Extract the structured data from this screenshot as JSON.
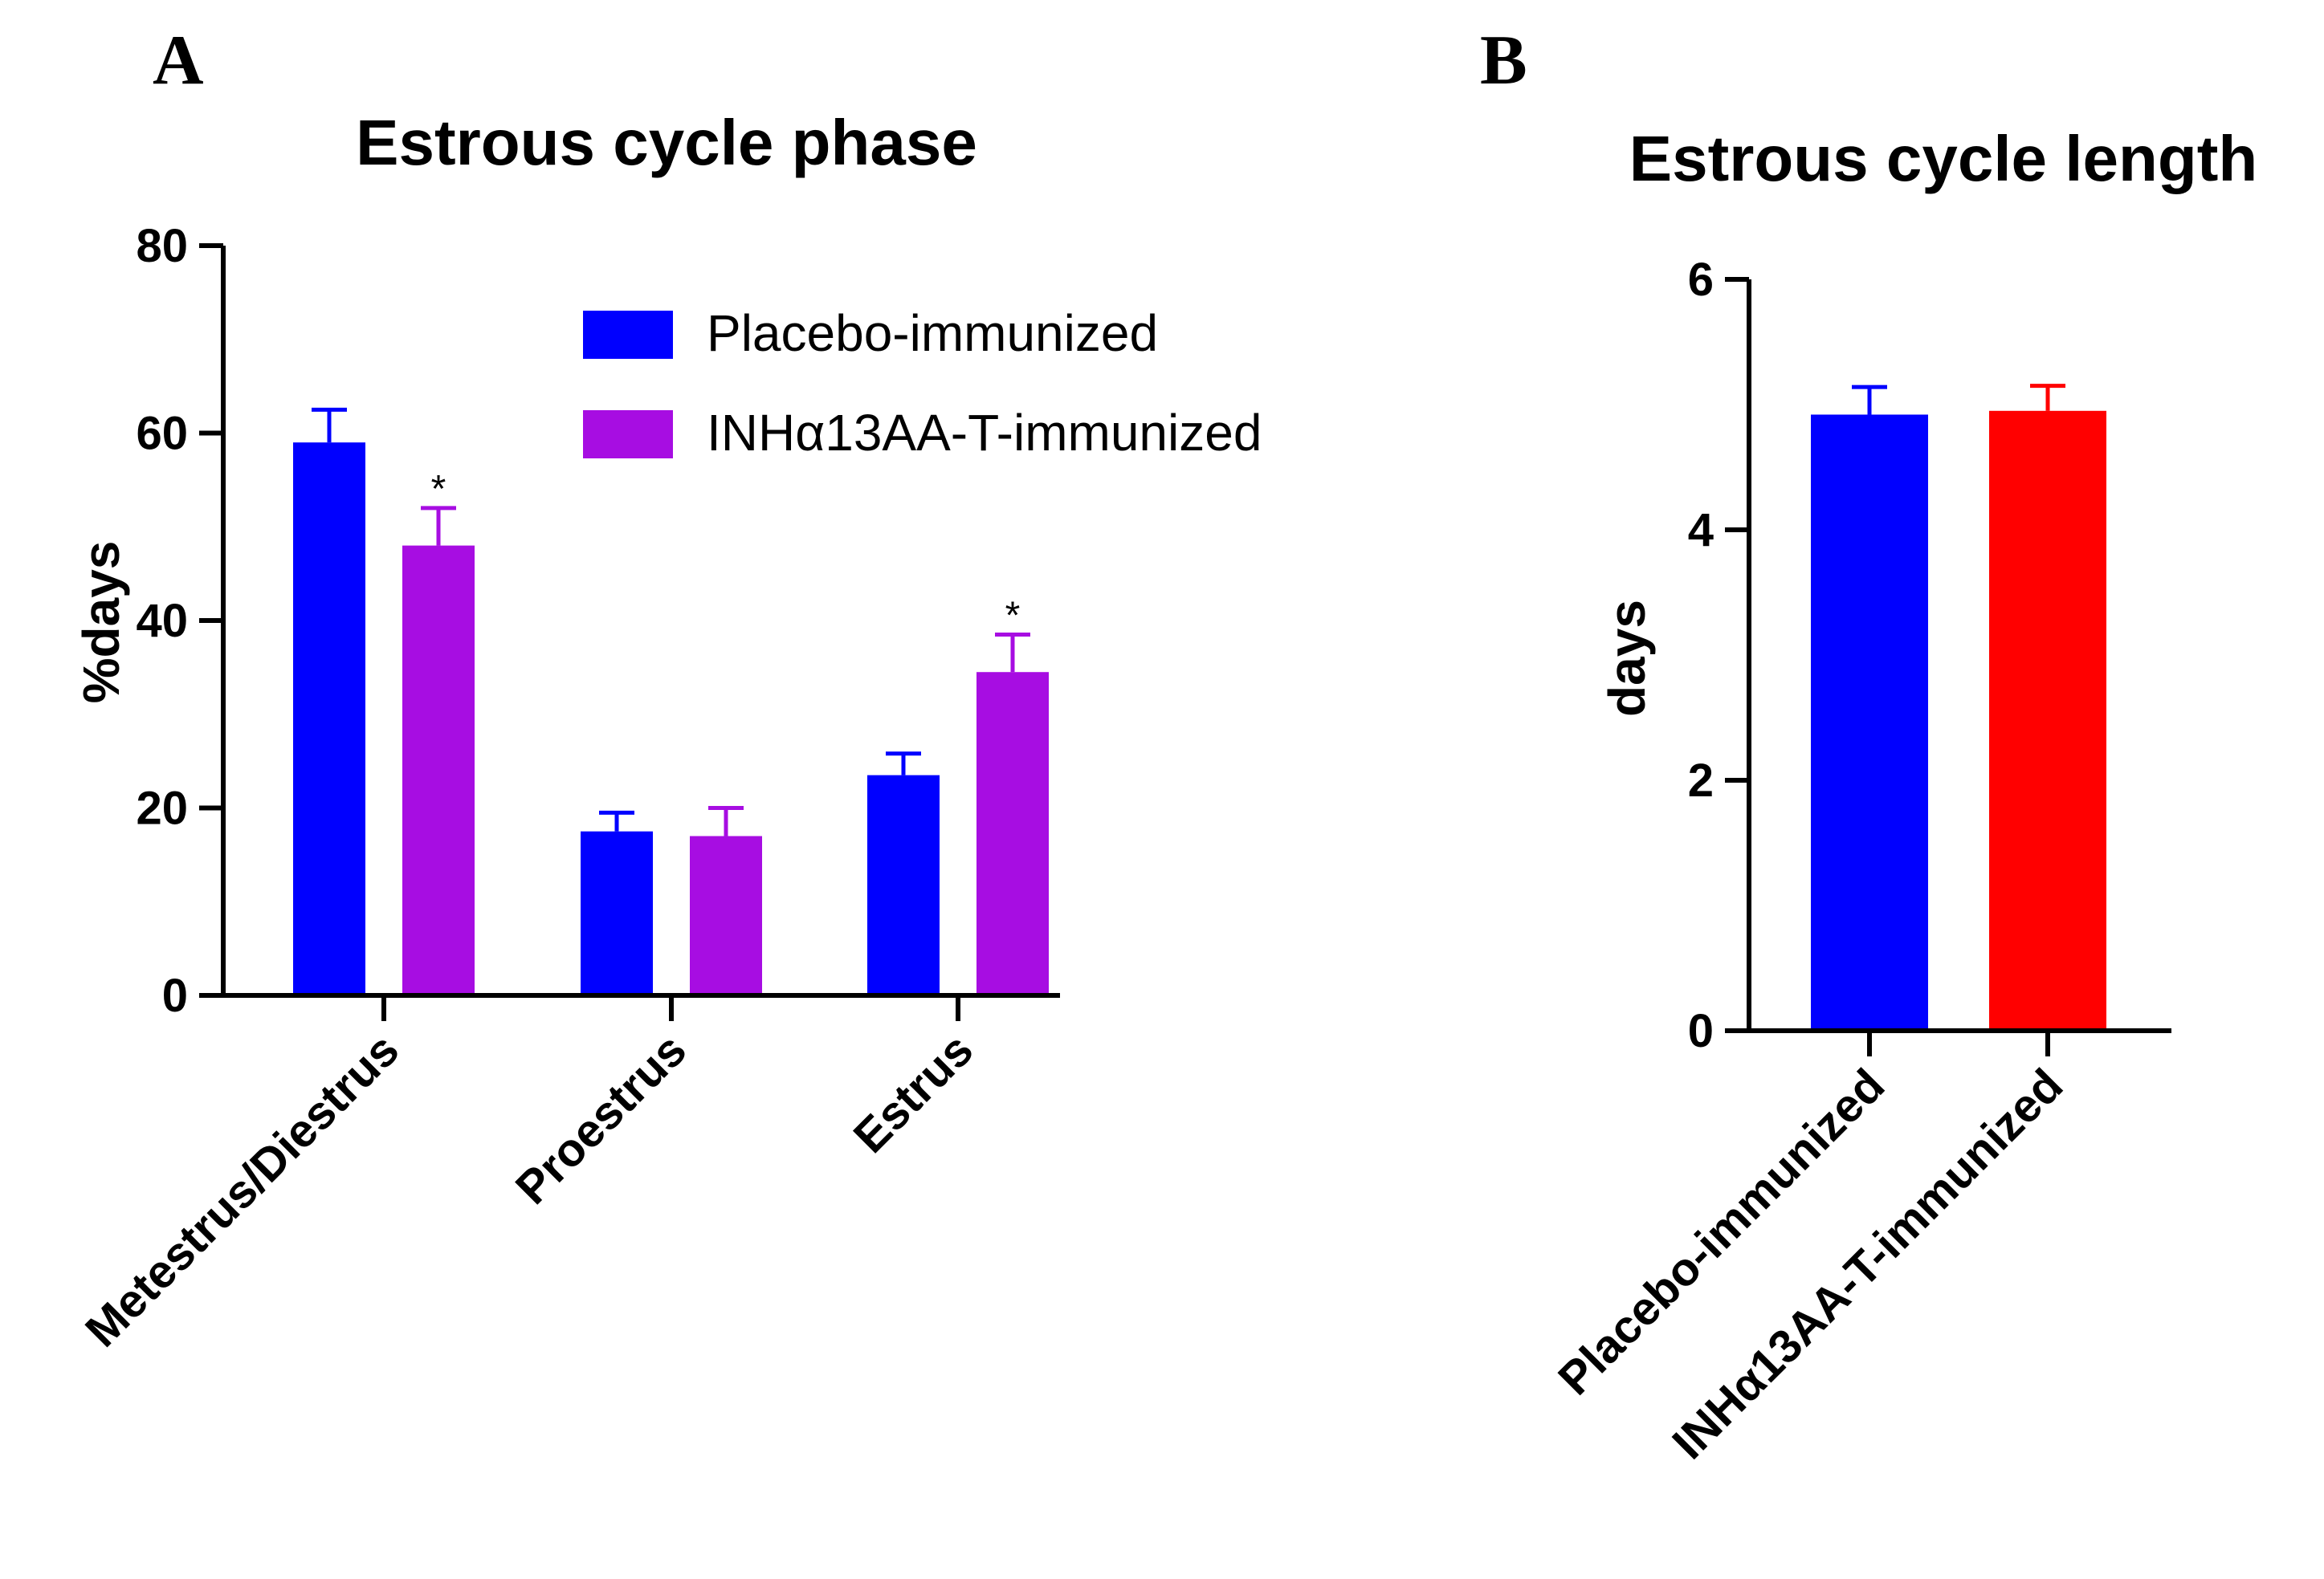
{
  "chart_data": [
    {
      "panel": "A",
      "type": "bar",
      "title": "Estrous cycle phase",
      "xlabel": "",
      "ylabel": "%days",
      "ylim": [
        0,
        80
      ],
      "yticks": [
        0,
        20,
        40,
        60,
        80
      ],
      "categories": [
        "Metestrus/Diestrus",
        "Proestrus",
        "Estrus"
      ],
      "series": [
        {
          "name": "Placebo-immunized",
          "color": "#0000ff",
          "values": [
            59,
            17.5,
            23.5
          ],
          "errors": [
            3.5,
            2,
            2.3
          ]
        },
        {
          "name": "INHα13AA-T-immunized",
          "color": "#a70de2",
          "values": [
            48,
            17,
            34.5
          ],
          "errors": [
            4,
            3,
            4
          ]
        }
      ],
      "annotations": [
        {
          "series": 1,
          "category": 0,
          "text": "*"
        },
        {
          "series": 1,
          "category": 2,
          "text": "*"
        }
      ],
      "legend": "top-right"
    },
    {
      "panel": "B",
      "type": "bar",
      "title": "Estrous cycle length",
      "xlabel": "",
      "ylabel": "days",
      "ylim": [
        0,
        6
      ],
      "yticks": [
        0,
        2,
        4,
        6
      ],
      "categories": [
        "Placebo-immunized",
        "INHα13AA-T-immunized"
      ],
      "colors": [
        "#0000ff",
        "#ff0000"
      ],
      "values": [
        4.92,
        4.95
      ],
      "errors": [
        0.22,
        0.2
      ]
    }
  ]
}
